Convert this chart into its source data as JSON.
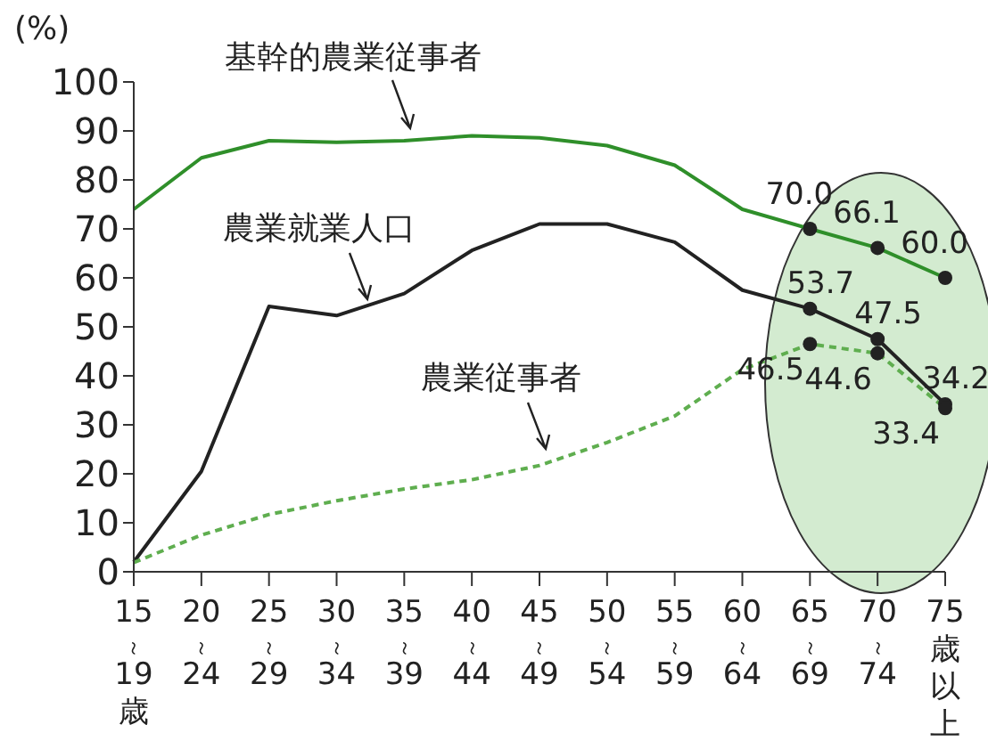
{
  "chart_data": {
    "type": "line",
    "ylabel": "(%)",
    "categories": [
      "15～19歳",
      "20～24",
      "25～29",
      "30～34",
      "35～39",
      "40～44",
      "45～49",
      "50～54",
      "55～59",
      "60～64",
      "65～69",
      "70～74",
      "75歳以上"
    ],
    "ylim": [
      0,
      100
    ],
    "yticks": [
      0,
      10,
      20,
      30,
      40,
      50,
      60,
      70,
      80,
      90,
      100
    ],
    "grid": false,
    "legend": false,
    "series": [
      {
        "name": "基幹的農業従事者",
        "color": "#2f8f2a",
        "line_style": "solid",
        "values": [
          74,
          84.5,
          88,
          87.7,
          88,
          89,
          88.6,
          87,
          83,
          74,
          70.0,
          66.1,
          60.0
        ],
        "value_labels": [
          null,
          null,
          null,
          null,
          null,
          null,
          null,
          null,
          null,
          null,
          "70.0",
          "66.1",
          "60.0"
        ]
      },
      {
        "name": "農業就業人口",
        "color": "#222222",
        "line_style": "solid",
        "values": [
          2,
          20.5,
          54.2,
          52.3,
          56.8,
          65.6,
          71,
          71,
          67.3,
          57.5,
          53.7,
          47.5,
          34.2
        ],
        "value_labels": [
          null,
          null,
          null,
          null,
          null,
          null,
          null,
          null,
          null,
          null,
          "53.7",
          "47.5",
          "34.2"
        ]
      },
      {
        "name": "農業従事者",
        "color": "#5fae4f",
        "line_style": "dashed",
        "values": [
          1.9,
          7.5,
          11.7,
          14.5,
          16.9,
          18.8,
          21.7,
          26.4,
          31.8,
          41.3,
          46.5,
          44.6,
          33.4
        ],
        "value_labels": [
          null,
          null,
          null,
          null,
          null,
          null,
          null,
          null,
          null,
          null,
          "46.5",
          "44.6",
          "33.4"
        ]
      }
    ]
  }
}
